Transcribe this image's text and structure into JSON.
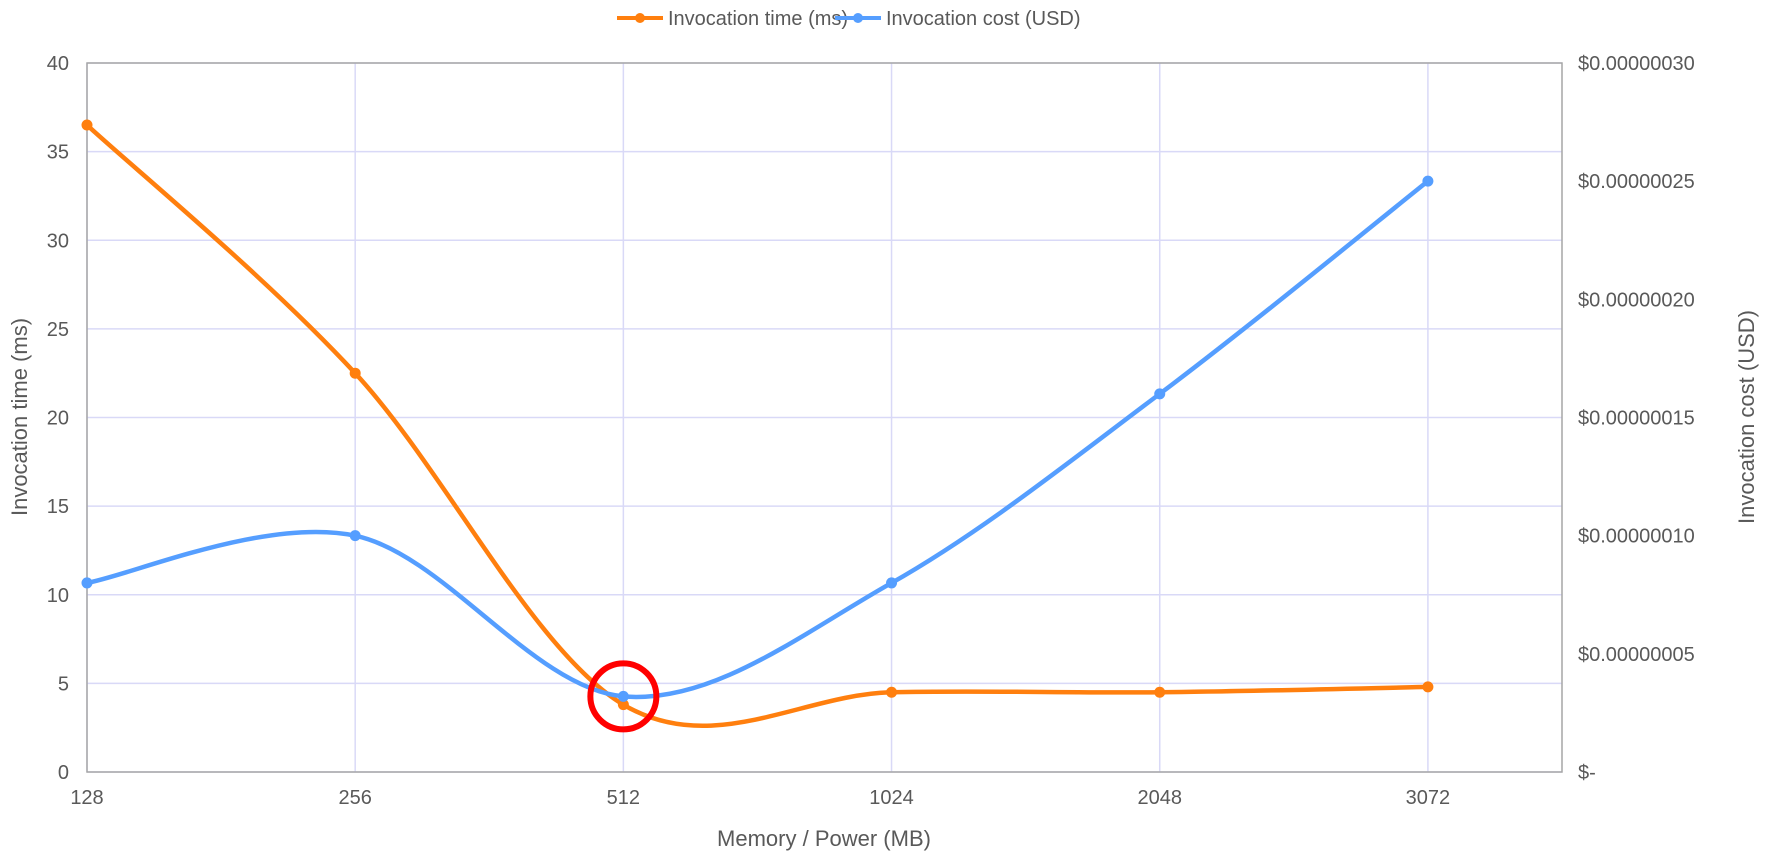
{
  "chart_data": {
    "type": "line",
    "smoothed": true,
    "xlabel": "Memory / Power (MB)",
    "categories": [
      "128",
      "256",
      "512",
      "1024",
      "2048",
      "3072"
    ],
    "y_left": {
      "label": "Invocation time (ms)",
      "lim": [
        0,
        40
      ],
      "ticks": [
        0,
        5,
        10,
        15,
        20,
        25,
        30,
        35,
        40
      ],
      "tick_labels": [
        "0",
        "5",
        "10",
        "15",
        "20",
        "25",
        "30",
        "35",
        "40"
      ]
    },
    "y_right": {
      "label": "Invocation cost (USD)",
      "lim": [
        0,
        3e-07
      ],
      "ticks": [
        0,
        5e-08,
        1e-07,
        1.5e-07,
        2e-07,
        2.5e-07,
        3e-07
      ],
      "tick_labels": [
        "$-",
        "$0.00000005",
        "$0.00000010",
        "$0.00000015",
        "$0.00000020",
        "$0.00000025",
        "$0.00000030"
      ]
    },
    "grid": true,
    "legend": "top",
    "series": [
      {
        "name": "Invocation time (ms)",
        "axis": "left",
        "color": "#ff7f0e",
        "values": [
          36.5,
          22.5,
          3.8,
          4.5,
          4.5,
          4.8
        ]
      },
      {
        "name": "Invocation cost (USD)",
        "axis": "right",
        "color": "#559eff",
        "values": [
          8e-08,
          1e-07,
          3.2e-08,
          8e-08,
          1.6e-07,
          2.5e-07
        ]
      }
    ],
    "highlight": {
      "category": "512",
      "color": "#ff0000",
      "shape": "circle"
    }
  }
}
